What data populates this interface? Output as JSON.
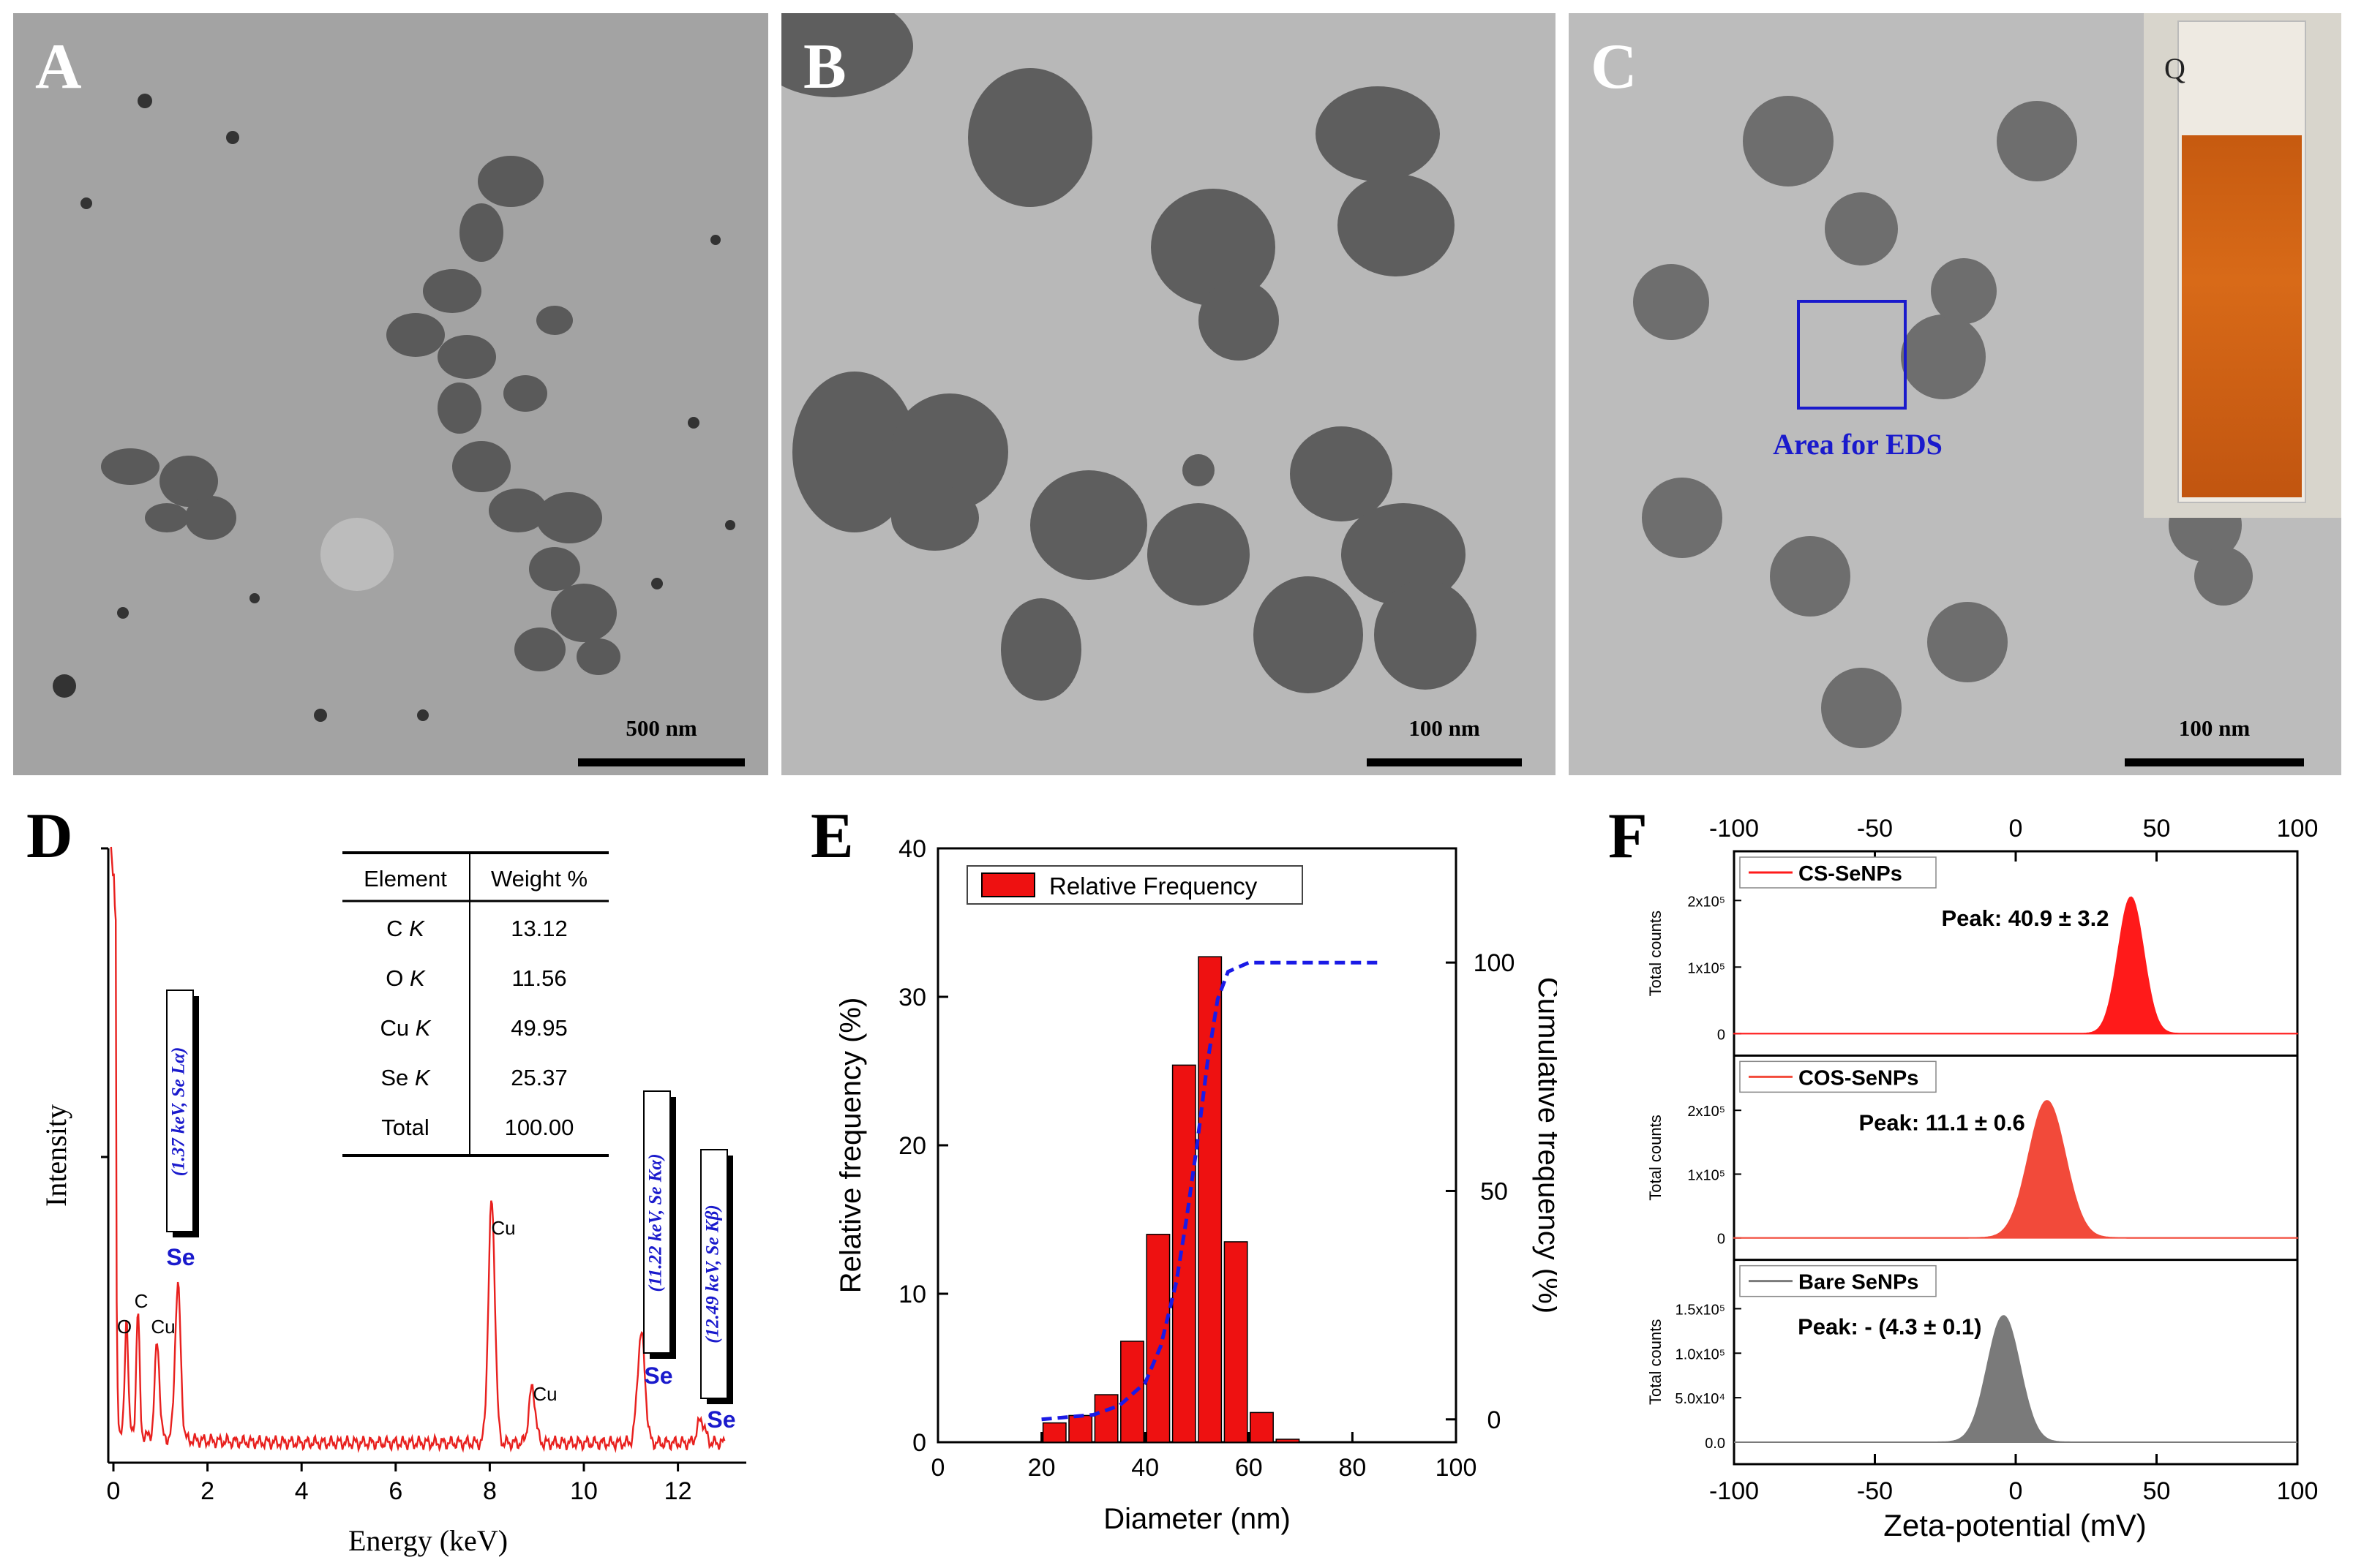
{
  "panels": {
    "A": {
      "label": "A",
      "scalebar": "500 nm"
    },
    "B": {
      "label": "B",
      "scalebar": "100 nm"
    },
    "C": {
      "label": "C",
      "scalebar": "100 nm",
      "box_label": "Area for EDS",
      "inset_label": "Q"
    }
  },
  "eds": {
    "label": "D",
    "xlabel": "Energy (keV)",
    "ylabel": "Intensity",
    "x_ticks": [
      "0",
      "2",
      "4",
      "6",
      "8",
      "10",
      "12"
    ],
    "table": {
      "headers": [
        "Element",
        "Weight %"
      ],
      "rows": [
        {
          "el": "C",
          "shell": "K",
          "wt": "13.12"
        },
        {
          "el": "O",
          "shell": "K",
          "wt": "11.56"
        },
        {
          "el": "Cu",
          "shell": "K",
          "wt": "49.95"
        },
        {
          "el": "Se",
          "shell": "K",
          "wt": "25.37"
        },
        {
          "el": "Total",
          "shell": "",
          "wt": "100.00"
        }
      ]
    },
    "peak_labels": [
      "O",
      "C",
      "Cu",
      "Se",
      "Cu",
      "Cu",
      "Se",
      "Se"
    ],
    "callouts": [
      "(1.37 keV, Se Lα)",
      "(11.22 keV, Se Kα)",
      "(12.49 keV, Se Kβ)"
    ],
    "colors": {
      "spectrum": "#e8201e",
      "se_label": "#1a1acc"
    }
  },
  "chart_data": [
    {
      "type": "bar",
      "panel": "E",
      "xlabel": "Diameter (nm)",
      "ylabel": "Relative frequency (%)",
      "ylabel_right": "Cumulative frequency (%)",
      "legend": "Relative Frequency",
      "xlim": [
        0,
        100
      ],
      "ylim": [
        0,
        40
      ],
      "ylim_right": [
        -5,
        125
      ],
      "x_ticks": [
        "0",
        "20",
        "40",
        "60",
        "80",
        "100"
      ],
      "y_ticks": [
        "0",
        "10",
        "20",
        "30",
        "40"
      ],
      "y_ticks_right": [
        "0",
        "50",
        "100"
      ],
      "bin_centers": [
        22.5,
        27.5,
        32.5,
        37.5,
        42.5,
        47.5,
        52.5,
        57.5,
        62.5,
        67.5
      ],
      "values": [
        1.3,
        1.8,
        3.2,
        6.8,
        14.0,
        25.4,
        32.7,
        13.5,
        2.0,
        0.2
      ],
      "cumulative_curve": {
        "x": [
          20,
          30,
          35,
          40,
          43,
          46,
          48,
          50,
          52,
          54,
          56,
          60,
          85
        ],
        "y": [
          0,
          1,
          3,
          8,
          16,
          30,
          44,
          60,
          78,
          92,
          98,
          100,
          100
        ]
      },
      "colors": {
        "bar": "#ee1111",
        "curve": "#1a1ae6"
      }
    },
    {
      "type": "area",
      "panel": "F",
      "xlabel": "Zeta-potential (mV)",
      "xlim": [
        -100,
        100
      ],
      "x_ticks": [
        "-100",
        "-50",
        "0",
        "50",
        "100"
      ],
      "series": [
        {
          "name": "CS-SeNPs",
          "peak_text": "Peak: 40.9 ± 3.2",
          "ylabel": "Total counts",
          "y_ticks": [
            "0",
            "1x10⁵",
            "2x10⁵"
          ],
          "center": 40.9,
          "sigma": 4.5,
          "height": 2.05,
          "ymax": 2.3,
          "color": "#ff1a1a"
        },
        {
          "name": "COS-SeNPs",
          "peak_text": "Peak: 11.1 ± 0.6",
          "ylabel": "Total counts",
          "y_ticks": [
            "0",
            "1x10⁵",
            "2x10⁵"
          ],
          "center": 11.1,
          "sigma": 6.5,
          "height": 2.15,
          "ymax": 2.4,
          "color": "#f24a3a"
        },
        {
          "name": "Bare SeNPs",
          "peak_text": "Peak: - (4.3 ± 0.1)",
          "ylabel": "Total counts",
          "y_ticks": [
            "0.0",
            "5.0x10⁴",
            "1.0x10⁵",
            "1.5x10⁵"
          ],
          "center": -4.3,
          "sigma": 5.8,
          "height": 1.42,
          "ymax": 1.72,
          "color": "#7a7a7a"
        }
      ]
    }
  ],
  "labels": {
    "E": "E",
    "F": "F"
  }
}
